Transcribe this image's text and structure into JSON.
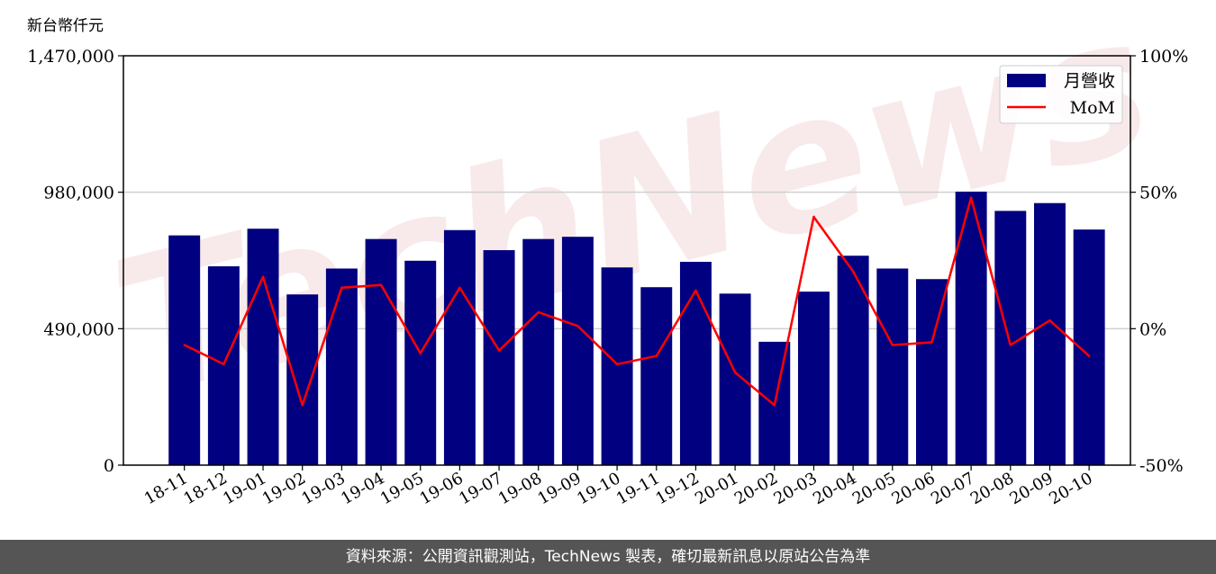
{
  "unit_label": "新台幣仟元",
  "watermark": "TechNews",
  "footer": "資料來源：公開資訊觀測站，TechNews 製表，確切最新訊息以原站公告為準",
  "colors": {
    "bar": "#000080",
    "line": "#ff0000",
    "grid": "#d0d0d0"
  },
  "chart_data": {
    "type": "bar",
    "categories": [
      "18-11",
      "18-12",
      "19-01",
      "19-02",
      "19-03",
      "19-04",
      "19-05",
      "19-06",
      "19-07",
      "19-08",
      "19-09",
      "19-10",
      "19-11",
      "19-12",
      "20-01",
      "20-02",
      "20-03",
      "20-04",
      "20-05",
      "20-06",
      "20-07",
      "20-08",
      "20-09",
      "20-10"
    ],
    "series": [
      {
        "name": "月營收",
        "type": "bar",
        "axis": "left",
        "values": [
          825000,
          714000,
          849000,
          613000,
          706000,
          812000,
          734000,
          844000,
          772000,
          812000,
          820000,
          710000,
          639000,
          730000,
          616000,
          443000,
          623000,
          752000,
          706000,
          668000,
          982000,
          913000,
          941000,
          846000
        ]
      },
      {
        "name": "MoM",
        "type": "line",
        "axis": "right",
        "values": [
          -6,
          -13,
          19,
          -28,
          15,
          16,
          -9,
          15,
          -8,
          6,
          1,
          -13,
          -10,
          14,
          -16,
          -28,
          41,
          21,
          -6,
          -5,
          48,
          -6,
          3,
          -10
        ]
      }
    ],
    "left_axis": {
      "ylim": [
        0,
        1470000
      ],
      "ticks": [
        "0",
        "490,000",
        "980,000",
        "1,470,000"
      ],
      "tick_values": [
        0,
        490000,
        980000,
        1470000
      ]
    },
    "right_axis": {
      "ylim": [
        -50,
        100
      ],
      "ticks": [
        "-50%",
        "0%",
        "50%",
        "100%"
      ],
      "tick_values": [
        -50,
        0,
        50,
        100
      ]
    },
    "grid": "horizontal",
    "legend": "top-right"
  }
}
